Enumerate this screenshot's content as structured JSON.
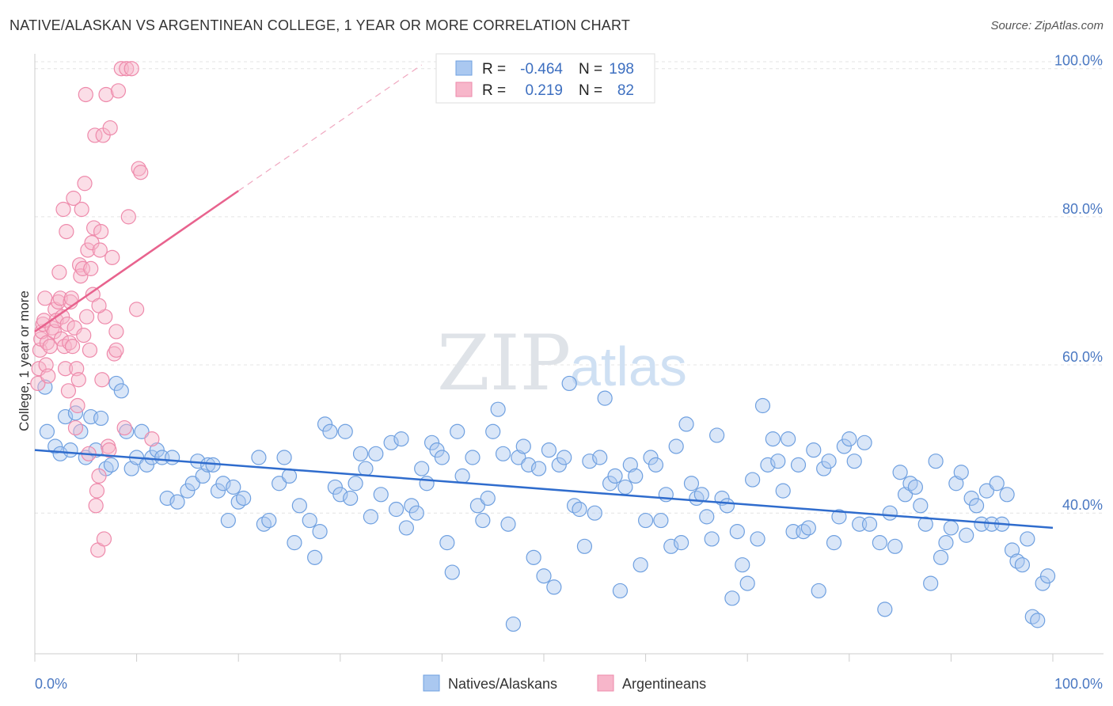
{
  "header": {
    "title": "NATIVE/ALASKAN VS ARGENTINEAN COLLEGE, 1 YEAR OR MORE CORRELATION CHART",
    "source": "Source: ZipAtlas.com"
  },
  "watermark": {
    "zip": "ZIP",
    "atlas": "atlas"
  },
  "legend_box": {
    "rows": [
      {
        "r_label": "R =",
        "r_value": "-0.464",
        "n_label": "N =",
        "n_value": "198",
        "color": "#aac8f0"
      },
      {
        "r_label": "R =",
        "r_value": "0.219",
        "n_label": "N =",
        "n_value": "82",
        "color": "#f7b6ca"
      }
    ]
  },
  "chart_data": {
    "type": "scatter",
    "xlabel": "",
    "ylabel": "College, 1 year or more",
    "xlim": [
      0,
      100
    ],
    "ylim": [
      21,
      102
    ],
    "y_ticks": [
      {
        "value": 40,
        "label": "40.0%"
      },
      {
        "value": 60,
        "label": "60.0%"
      },
      {
        "value": 80,
        "label": "80.0%"
      },
      {
        "value": 100,
        "label": "100.0%"
      }
    ],
    "x_tick_labels": {
      "left": "0.0%",
      "right": "100.0%"
    },
    "grid": true,
    "legend_position": "bottom",
    "series": [
      {
        "name": "Natives/Alaskans",
        "color": "#6fa0e0",
        "fill": "#aac8f0",
        "trend": {
          "x0": 0,
          "y0": 48.5,
          "x1": 100,
          "y1": 38.0,
          "color": "#2f6ccd"
        },
        "points": [
          [
            1,
            57
          ],
          [
            1.2,
            51
          ],
          [
            2,
            49
          ],
          [
            2.5,
            48
          ],
          [
            3,
            53
          ],
          [
            3.5,
            48.5
          ],
          [
            4,
            53.5
          ],
          [
            4.5,
            51
          ],
          [
            5,
            47.5
          ],
          [
            5.5,
            53
          ],
          [
            6,
            48.5
          ],
          [
            6.5,
            52.8
          ],
          [
            7,
            46
          ],
          [
            7.5,
            46.5
          ],
          [
            8,
            57.5
          ],
          [
            8.5,
            56.5
          ],
          [
            9,
            51
          ],
          [
            9.5,
            46
          ],
          [
            10,
            47.5
          ],
          [
            10.5,
            51
          ],
          [
            11,
            46.5
          ],
          [
            11.5,
            47.5
          ],
          [
            12,
            48.5
          ],
          [
            12.5,
            47.5
          ],
          [
            13,
            42
          ],
          [
            13.5,
            47.5
          ],
          [
            14,
            41.5
          ],
          [
            15,
            43
          ],
          [
            15.5,
            44
          ],
          [
            16,
            47
          ],
          [
            16.5,
            45
          ],
          [
            17,
            46.5
          ],
          [
            17.5,
            46.5
          ],
          [
            18,
            43
          ],
          [
            18.5,
            44
          ],
          [
            19,
            39
          ],
          [
            19.5,
            43.5
          ],
          [
            20,
            41.5
          ],
          [
            20.5,
            42
          ],
          [
            22,
            47.5
          ],
          [
            22.5,
            38.5
          ],
          [
            23,
            39
          ],
          [
            24,
            44
          ],
          [
            24.5,
            47.5
          ],
          [
            25,
            45
          ],
          [
            25.5,
            36
          ],
          [
            26,
            41
          ],
          [
            27,
            39
          ],
          [
            27.5,
            34
          ],
          [
            28,
            37.5
          ],
          [
            28.5,
            52
          ],
          [
            29,
            51
          ],
          [
            29.5,
            43.5
          ],
          [
            30,
            42.5
          ],
          [
            30.5,
            51
          ],
          [
            31,
            42
          ],
          [
            31.5,
            44
          ],
          [
            32,
            48
          ],
          [
            32.5,
            46
          ],
          [
            33,
            39.5
          ],
          [
            33.5,
            48
          ],
          [
            34,
            42.5
          ],
          [
            35,
            49.5
          ],
          [
            35.5,
            40.5
          ],
          [
            36,
            50
          ],
          [
            36.5,
            38
          ],
          [
            37,
            41
          ],
          [
            37.5,
            40
          ],
          [
            38,
            46
          ],
          [
            38.5,
            44
          ],
          [
            39,
            49.5
          ],
          [
            39.5,
            48.5
          ],
          [
            40,
            47.5
          ],
          [
            40.5,
            36
          ],
          [
            41,
            32
          ],
          [
            41.5,
            51
          ],
          [
            42,
            45
          ],
          [
            43,
            47.5
          ],
          [
            43.5,
            41
          ],
          [
            44,
            39
          ],
          [
            44.5,
            42
          ],
          [
            45,
            51
          ],
          [
            45.5,
            54
          ],
          [
            46,
            48
          ],
          [
            46.5,
            38.5
          ],
          [
            47,
            25
          ],
          [
            47.5,
            47.5
          ],
          [
            48,
            49
          ],
          [
            48.5,
            46.5
          ],
          [
            49,
            34
          ],
          [
            49.5,
            46
          ],
          [
            50,
            31.5
          ],
          [
            50.5,
            48.5
          ],
          [
            51,
            30
          ],
          [
            51.5,
            46.5
          ],
          [
            52,
            47.5
          ],
          [
            52.5,
            57.5
          ],
          [
            53,
            41
          ],
          [
            53.5,
            40.5
          ],
          [
            54,
            35.5
          ],
          [
            54.5,
            47
          ],
          [
            55,
            40
          ],
          [
            55.5,
            47.5
          ],
          [
            56,
            55.5
          ],
          [
            56.5,
            44
          ],
          [
            57,
            45
          ],
          [
            57.5,
            29.5
          ],
          [
            58,
            43.5
          ],
          [
            58.5,
            46.5
          ],
          [
            59,
            45
          ],
          [
            59.5,
            33
          ],
          [
            60,
            39
          ],
          [
            60.5,
            47.5
          ],
          [
            61,
            46.5
          ],
          [
            61.5,
            39
          ],
          [
            62,
            42.5
          ],
          [
            62.5,
            35.5
          ],
          [
            63,
            49
          ],
          [
            63.5,
            36
          ],
          [
            64,
            52
          ],
          [
            64.5,
            44
          ],
          [
            65,
            42
          ],
          [
            65.5,
            42.5
          ],
          [
            66,
            39.5
          ],
          [
            66.5,
            36.5
          ],
          [
            67,
            50.5
          ],
          [
            67.5,
            42
          ],
          [
            68,
            41
          ],
          [
            68.5,
            28.5
          ],
          [
            69,
            37.5
          ],
          [
            69.5,
            33
          ],
          [
            70,
            30.5
          ],
          [
            70.5,
            44.5
          ],
          [
            71,
            36.5
          ],
          [
            71.5,
            54.5
          ],
          [
            72,
            46.5
          ],
          [
            72.5,
            50
          ],
          [
            73,
            47
          ],
          [
            73.5,
            43
          ],
          [
            74,
            50
          ],
          [
            74.5,
            37.5
          ],
          [
            75,
            46.5
          ],
          [
            75.5,
            37.5
          ],
          [
            76,
            38
          ],
          [
            76.5,
            48.5
          ],
          [
            77,
            29.5
          ],
          [
            77.5,
            46
          ],
          [
            78,
            47
          ],
          [
            78.5,
            36
          ],
          [
            79,
            39.5
          ],
          [
            79.5,
            49
          ],
          [
            80,
            50
          ],
          [
            80.5,
            47
          ],
          [
            81,
            38.5
          ],
          [
            81.5,
            49.5
          ],
          [
            82,
            38.5
          ],
          [
            83,
            36
          ],
          [
            83.5,
            27
          ],
          [
            84,
            40
          ],
          [
            84.5,
            35.5
          ],
          [
            85,
            45.5
          ],
          [
            85.5,
            42.5
          ],
          [
            86,
            44
          ],
          [
            86.5,
            43.5
          ],
          [
            87,
            41
          ],
          [
            87.5,
            38.5
          ],
          [
            88,
            30.5
          ],
          [
            88.5,
            47
          ],
          [
            89,
            34
          ],
          [
            89.5,
            36
          ],
          [
            90,
            38
          ],
          [
            90.5,
            44
          ],
          [
            91,
            45.5
          ],
          [
            91.5,
            37
          ],
          [
            92,
            42
          ],
          [
            92.5,
            41
          ],
          [
            93,
            38.5
          ],
          [
            93.5,
            43
          ],
          [
            94,
            38.5
          ],
          [
            94.5,
            44
          ],
          [
            95,
            38.5
          ],
          [
            95.5,
            42.5
          ],
          [
            96,
            35
          ],
          [
            96.5,
            33.5
          ],
          [
            97,
            33
          ],
          [
            97.5,
            36.5
          ],
          [
            98,
            26
          ],
          [
            98.5,
            25.5
          ],
          [
            99,
            30.5
          ],
          [
            99.5,
            31.5
          ]
        ]
      },
      {
        "name": "Argentineans",
        "color": "#ee8aab",
        "fill": "#f7b6ca",
        "trend": {
          "x0": 0,
          "y0": 64.5,
          "x1": 20,
          "y1": 83.5,
          "x_dash_end": 38,
          "y_dash_end": 100.5,
          "color": "#e8638e"
        },
        "points": [
          [
            0.3,
            57.5
          ],
          [
            0.4,
            59.5
          ],
          [
            0.5,
            62
          ],
          [
            0.6,
            63.5
          ],
          [
            0.7,
            64.5
          ],
          [
            0.8,
            65.5
          ],
          [
            0.9,
            66
          ],
          [
            1,
            69
          ],
          [
            1.1,
            60
          ],
          [
            1.2,
            63
          ],
          [
            1.3,
            58.5
          ],
          [
            1.5,
            62.5
          ],
          [
            1.7,
            65
          ],
          [
            1.9,
            64.5
          ],
          [
            2,
            67.5
          ],
          [
            2.1,
            66
          ],
          [
            2.3,
            68.5
          ],
          [
            2.4,
            72.5
          ],
          [
            2.5,
            69
          ],
          [
            2.6,
            63.5
          ],
          [
            2.7,
            66.5
          ],
          [
            2.8,
            81
          ],
          [
            2.9,
            62.5
          ],
          [
            3,
            59.5
          ],
          [
            3.1,
            78
          ],
          [
            3.2,
            65.5
          ],
          [
            3.3,
            56.5
          ],
          [
            3.4,
            63
          ],
          [
            3.5,
            68.5
          ],
          [
            3.6,
            69
          ],
          [
            3.7,
            62.5
          ],
          [
            3.8,
            82.5
          ],
          [
            3.9,
            65
          ],
          [
            4,
            51.5
          ],
          [
            4.1,
            59.5
          ],
          [
            4.2,
            54.5
          ],
          [
            4.3,
            58
          ],
          [
            4.4,
            73.5
          ],
          [
            4.5,
            72
          ],
          [
            4.6,
            81
          ],
          [
            4.7,
            73
          ],
          [
            4.8,
            64
          ],
          [
            4.9,
            84.5
          ],
          [
            5,
            96.5
          ],
          [
            5.1,
            66.5
          ],
          [
            5.2,
            75.5
          ],
          [
            5.3,
            48
          ],
          [
            5.4,
            62
          ],
          [
            5.5,
            73
          ],
          [
            5.6,
            76.5
          ],
          [
            5.7,
            69.5
          ],
          [
            5.8,
            78.5
          ],
          [
            5.9,
            91
          ],
          [
            6,
            41
          ],
          [
            6.1,
            43
          ],
          [
            6.2,
            35
          ],
          [
            6.3,
            45
          ],
          [
            6.4,
            75.5
          ],
          [
            6.5,
            78
          ],
          [
            6.6,
            58
          ],
          [
            6.7,
            91
          ],
          [
            6.8,
            36.5
          ],
          [
            6.9,
            66.5
          ],
          [
            7,
            96.5
          ],
          [
            7.2,
            49
          ],
          [
            7.4,
            92
          ],
          [
            7.6,
            74.5
          ],
          [
            7.8,
            61.5
          ],
          [
            8,
            64.5
          ],
          [
            8,
            62
          ],
          [
            8.2,
            97
          ],
          [
            8.5,
            100
          ],
          [
            8.8,
            51.5
          ],
          [
            9,
            100
          ],
          [
            9.2,
            80
          ],
          [
            9.5,
            100
          ],
          [
            10,
            67.5
          ],
          [
            10.2,
            86.5
          ],
          [
            10.4,
            86
          ],
          [
            11.5,
            50
          ],
          [
            7.3,
            48.5
          ],
          [
            6.3,
            68
          ]
        ]
      }
    ]
  }
}
